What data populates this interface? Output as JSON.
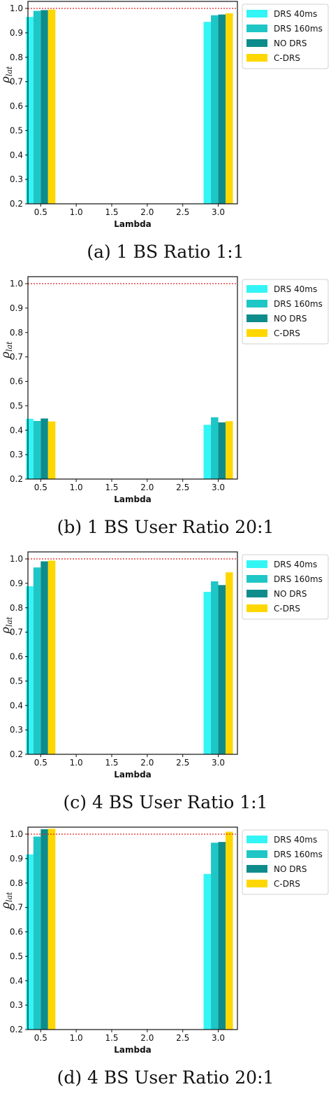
{
  "chart_data": [
    {
      "type": "bar",
      "caption": "(a) 1 BS Ratio 1:1",
      "xlabel": "Lambda",
      "ylabel": "ρlat",
      "categories": [
        "0.5",
        "3.0"
      ],
      "xticks": [
        "0.5",
        "1.0",
        "1.5",
        "2.0",
        "2.5",
        "3.0"
      ],
      "yticks": [
        "0.2",
        "0.3",
        "0.4",
        "0.5",
        "0.6",
        "0.7",
        "0.8",
        "0.9",
        "1.0"
      ],
      "ylim": [
        0.2,
        1.0
      ],
      "reference_line": 1.0,
      "legend_position": "outside-top-right",
      "series": [
        {
          "name": "DRS 40ms",
          "color": "#33f5f5",
          "values": [
            0.965,
            0.945
          ]
        },
        {
          "name": "DRS 160ms",
          "color": "#1fc6c6",
          "values": [
            0.99,
            0.972
          ]
        },
        {
          "name": "NO DRS",
          "color": "#0e8c8c",
          "values": [
            0.993,
            0.975
          ]
        },
        {
          "name": "C-DRS",
          "color": "#ffd700",
          "values": [
            0.995,
            0.98
          ]
        }
      ]
    },
    {
      "type": "bar",
      "caption": "(b) 1 BS User Ratio 20:1",
      "xlabel": "Lambda",
      "ylabel": "ρlat",
      "categories": [
        "0.5",
        "3.0"
      ],
      "xticks": [
        "0.5",
        "1.0",
        "1.5",
        "2.0",
        "2.5",
        "3.0"
      ],
      "yticks": [
        "0.2",
        "0.3",
        "0.4",
        "0.5",
        "0.6",
        "0.7",
        "0.8",
        "0.9",
        "1.0"
      ],
      "ylim": [
        0.2,
        1.0
      ],
      "reference_line": 1.0,
      "legend_position": "outside-top-right",
      "series": [
        {
          "name": "DRS 40ms",
          "color": "#33f5f5",
          "values": [
            0.447,
            0.422
          ]
        },
        {
          "name": "DRS 160ms",
          "color": "#1fc6c6",
          "values": [
            0.438,
            0.453
          ]
        },
        {
          "name": "NO DRS",
          "color": "#0e8c8c",
          "values": [
            0.448,
            0.432
          ]
        },
        {
          "name": "C-DRS",
          "color": "#ffd700",
          "values": [
            0.436,
            0.437
          ]
        }
      ]
    },
    {
      "type": "bar",
      "caption": "(c) 4 BS User Ratio 1:1",
      "xlabel": "Lambda",
      "ylabel": "ρlat",
      "categories": [
        "0.5",
        "3.0"
      ],
      "xticks": [
        "0.5",
        "1.0",
        "1.5",
        "2.0",
        "2.5",
        "3.0"
      ],
      "yticks": [
        "0.2",
        "0.3",
        "0.4",
        "0.5",
        "0.6",
        "0.7",
        "0.8",
        "0.9",
        "1.0"
      ],
      "ylim": [
        0.2,
        1.0
      ],
      "reference_line": 1.0,
      "legend_position": "outside-top-right",
      "series": [
        {
          "name": "DRS 40ms",
          "color": "#33f5f5",
          "values": [
            0.888,
            0.865
          ]
        },
        {
          "name": "DRS 160ms",
          "color": "#1fc6c6",
          "values": [
            0.965,
            0.908
          ]
        },
        {
          "name": "NO DRS",
          "color": "#0e8c8c",
          "values": [
            0.99,
            0.893
          ]
        },
        {
          "name": "C-DRS",
          "color": "#ffd700",
          "values": [
            0.993,
            0.945
          ]
        }
      ]
    },
    {
      "type": "bar",
      "caption": "(d) 4 BS User Ratio 20:1",
      "xlabel": "Lambda",
      "ylabel": "ρlat",
      "categories": [
        "0.5",
        "3.0"
      ],
      "xticks": [
        "0.5",
        "1.0",
        "1.5",
        "2.0",
        "2.5",
        "3.0"
      ],
      "yticks": [
        "0.2",
        "0.3",
        "0.4",
        "0.5",
        "0.6",
        "0.7",
        "0.8",
        "0.9",
        "1.0"
      ],
      "ylim": [
        0.2,
        1.0
      ],
      "reference_line": 1.0,
      "legend_position": "outside-top-right",
      "series": [
        {
          "name": "DRS 40ms",
          "color": "#33f5f5",
          "values": [
            0.917,
            0.837
          ]
        },
        {
          "name": "DRS 160ms",
          "color": "#1fc6c6",
          "values": [
            0.99,
            0.965
          ]
        },
        {
          "name": "NO DRS",
          "color": "#0e8c8c",
          "values": [
            1.02,
            0.968
          ]
        },
        {
          "name": "C-DRS",
          "color": "#ffd700",
          "values": [
            1.022,
            1.01
          ]
        }
      ]
    }
  ]
}
